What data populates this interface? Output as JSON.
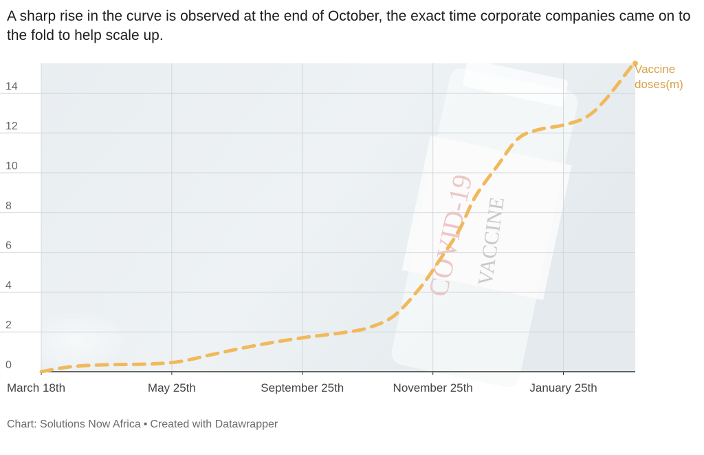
{
  "headline": "A sharp rise in the curve is observed at the end of October, the exact time corporate companies came on to the fold to help scale up.",
  "footer": {
    "source": "Chart: Solutions Now Africa",
    "separator": "•",
    "credit": "Created with Datawrapper"
  },
  "background_image_text": {
    "line1": "COVID-19",
    "line2": "VACCINE"
  },
  "chart_data": {
    "type": "line",
    "x_tick_labels": [
      "March 18th",
      "May 25th",
      "September 25th",
      "November 25th",
      "January 25th"
    ],
    "x_tick_positions": [
      0,
      2,
      4,
      6,
      8
    ],
    "x_max": 9.1,
    "ylim": [
      0,
      15.5
    ],
    "y_ticks": [
      0,
      2,
      4,
      6,
      8,
      10,
      12,
      14
    ],
    "grid": true,
    "series": [
      {
        "name": "Vaccine doses(m)",
        "label_lines": [
          "Vaccine",
          "doses(m)"
        ],
        "color": "#f0b95c",
        "style": "dashed",
        "x": [
          0,
          0.45,
          1,
          1.6,
          2.1,
          2.6,
          3.1,
          3.6,
          4.1,
          4.6,
          5.0,
          5.4,
          5.8,
          6.1,
          6.4,
          6.65,
          7.0,
          7.3,
          7.6,
          8.0,
          8.35,
          8.65,
          9.1
        ],
        "y": [
          0,
          0.25,
          0.35,
          0.38,
          0.5,
          0.85,
          1.2,
          1.5,
          1.75,
          1.95,
          2.2,
          2.8,
          4.2,
          5.6,
          7.1,
          8.8,
          10.4,
          11.7,
          12.15,
          12.4,
          12.8,
          13.7,
          15.6
        ]
      }
    ]
  }
}
